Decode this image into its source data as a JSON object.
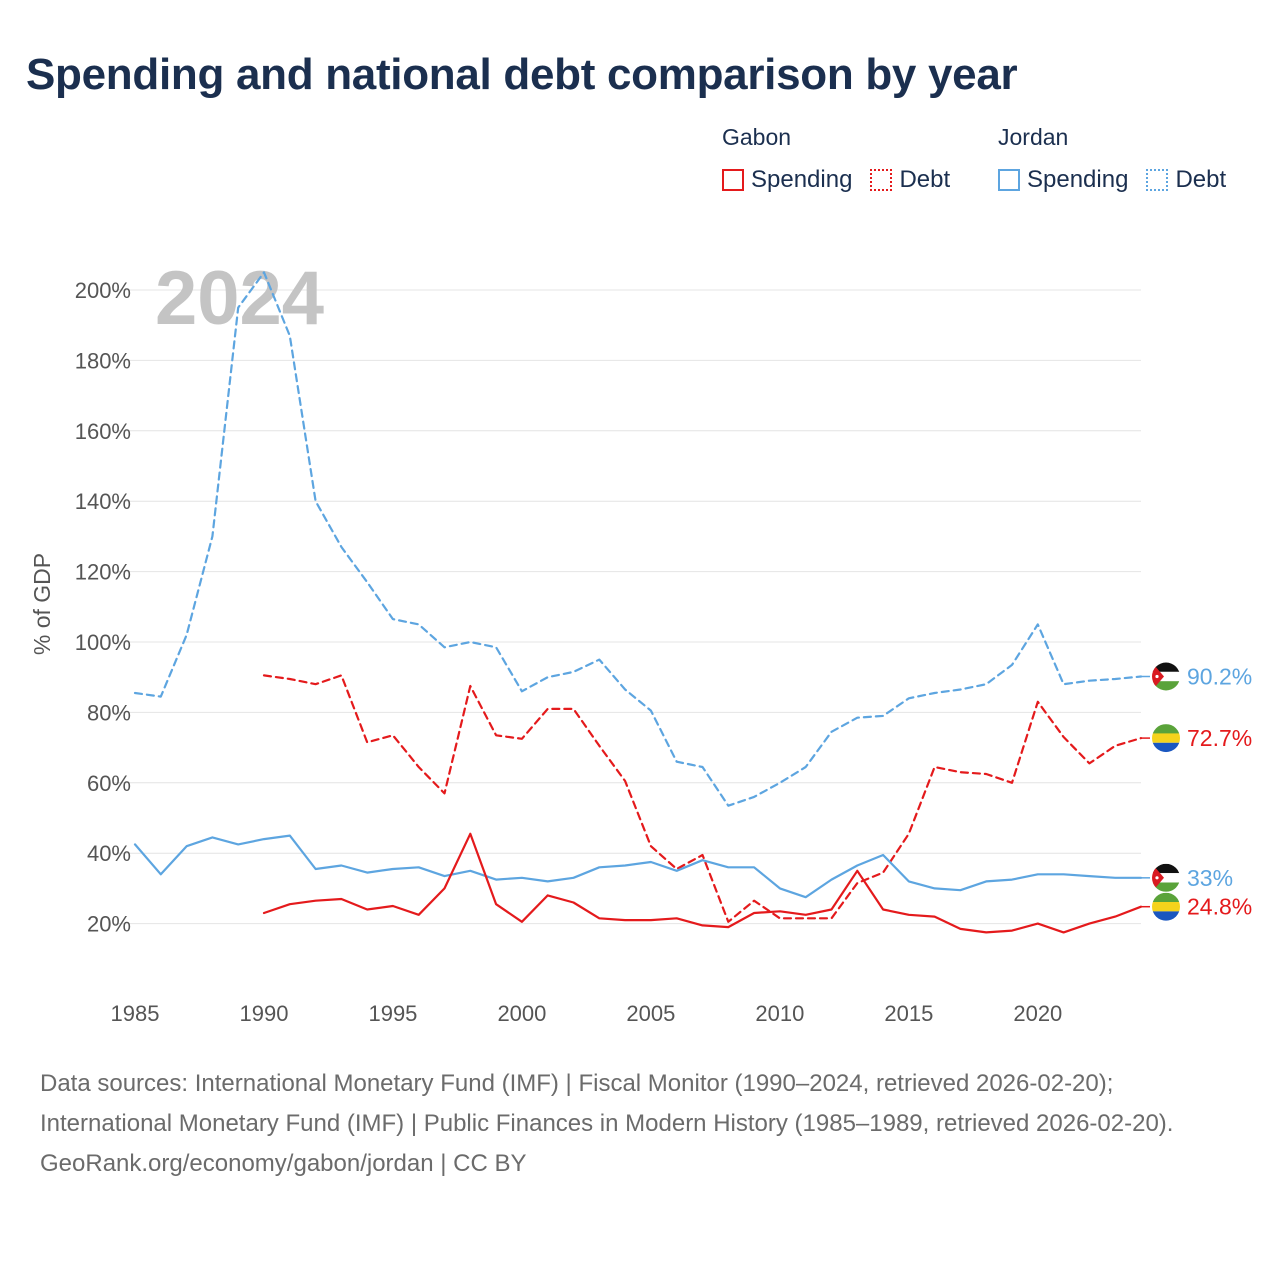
{
  "title": "Spending and national debt comparison by year",
  "legend": {
    "groups": [
      {
        "name": "Gabon",
        "color": "#e41a1c",
        "items": [
          {
            "label": "Spending",
            "style": "solid"
          },
          {
            "label": "Debt",
            "style": "dotted"
          }
        ]
      },
      {
        "name": "Jordan",
        "color": "#5da5e0",
        "items": [
          {
            "label": "Spending",
            "style": "solid"
          },
          {
            "label": "Debt",
            "style": "dotted"
          }
        ]
      }
    ]
  },
  "footer": {
    "sources": "Data sources: International Monetary Fund (IMF) | Fiscal Monitor (1990–2024, retrieved 2026-02-20); International Monetary Fund (IMF) | Public Finances in Modern History (1985–1989, retrieved 2026-02-20).",
    "credit": "GeoRank.org/economy/gabon/jordan | CC BY"
  },
  "chart_data": {
    "type": "line",
    "title": "Spending and national debt comparison by year",
    "ylabel": "% of GDP",
    "xlabel": "",
    "year_label": "2024",
    "xlim": [
      1985,
      2024
    ],
    "ylim": [
      0,
      210
    ],
    "x_ticks": [
      1985,
      1990,
      1995,
      2000,
      2005,
      2010,
      2015,
      2020
    ],
    "y_ticks": [
      20,
      40,
      60,
      80,
      100,
      120,
      140,
      160,
      180,
      200
    ],
    "y_tick_labels": [
      "20%",
      "40%",
      "60%",
      "80%",
      "100%",
      "120%",
      "140%",
      "160%",
      "180%",
      "200%"
    ],
    "grid": true,
    "series": [
      {
        "name": "Jordan Debt",
        "country": "Jordan",
        "metric": "Debt",
        "color": "#5da5e0",
        "dash": "dashed",
        "x": [
          1985,
          1986,
          1987,
          1988,
          1989,
          1990,
          1991,
          1992,
          1993,
          1994,
          1995,
          1996,
          1997,
          1998,
          1999,
          2000,
          2001,
          2002,
          2003,
          2004,
          2005,
          2006,
          2007,
          2008,
          2009,
          2010,
          2011,
          2012,
          2013,
          2014,
          2015,
          2016,
          2017,
          2018,
          2019,
          2020,
          2021,
          2022,
          2023,
          2024
        ],
        "values": [
          85.5,
          84.5,
          102,
          130,
          195,
          205,
          187,
          140,
          127,
          117,
          106.5,
          105,
          98.5,
          100,
          98.5,
          86,
          90,
          91.5,
          95,
          86.5,
          80.5,
          66,
          64.5,
          53.5,
          56,
          60,
          64.5,
          74.5,
          78.5,
          79,
          84,
          85.5,
          86.5,
          88,
          93.5,
          105,
          88,
          89,
          89.5,
          90.2
        ],
        "end_label": "90.2%"
      },
      {
        "name": "Gabon Debt",
        "country": "Gabon",
        "metric": "Debt",
        "color": "#e41a1c",
        "dash": "dashed",
        "x": [
          1990,
          1991,
          1992,
          1993,
          1994,
          1995,
          1996,
          1997,
          1998,
          1999,
          2000,
          2001,
          2002,
          2003,
          2004,
          2005,
          2006,
          2007,
          2008,
          2009,
          2010,
          2011,
          2012,
          2013,
          2014,
          2015,
          2016,
          2017,
          2018,
          2019,
          2020,
          2021,
          2022,
          2023,
          2024
        ],
        "values": [
          90.5,
          89.5,
          88,
          90.5,
          71.5,
          73.5,
          64.5,
          57,
          87.5,
          73.5,
          72.5,
          81,
          81,
          70.5,
          60.5,
          42,
          35.5,
          39.5,
          20.5,
          26.5,
          21.5,
          21.5,
          21.5,
          31.5,
          34.5,
          45.5,
          64.5,
          63,
          62.5,
          60,
          83,
          73,
          65.5,
          70.5,
          72.7
        ],
        "end_label": "72.7%"
      },
      {
        "name": "Jordan Spending",
        "country": "Jordan",
        "metric": "Spending",
        "color": "#5da5e0",
        "dash": "solid",
        "x": [
          1985,
          1986,
          1987,
          1988,
          1989,
          1990,
          1991,
          1992,
          1993,
          1994,
          1995,
          1996,
          1997,
          1998,
          1999,
          2000,
          2001,
          2002,
          2003,
          2004,
          2005,
          2006,
          2007,
          2008,
          2009,
          2010,
          2011,
          2012,
          2013,
          2014,
          2015,
          2016,
          2017,
          2018,
          2019,
          2020,
          2021,
          2022,
          2023,
          2024
        ],
        "values": [
          42.5,
          34,
          42,
          44.5,
          42.5,
          44,
          45,
          35.5,
          36.5,
          34.5,
          35.5,
          36,
          33.5,
          35,
          32.5,
          33,
          32,
          33,
          36,
          36.5,
          37.5,
          35,
          38,
          36,
          36,
          30,
          27.5,
          32.5,
          36.5,
          39.5,
          32,
          30,
          29.5,
          32,
          32.5,
          34,
          34,
          33.5,
          33,
          33
        ],
        "end_label": "33%"
      },
      {
        "name": "Gabon Spending",
        "country": "Gabon",
        "metric": "Spending",
        "color": "#e41a1c",
        "dash": "solid",
        "x": [
          1990,
          1991,
          1992,
          1993,
          1994,
          1995,
          1996,
          1997,
          1998,
          1999,
          2000,
          2001,
          2002,
          2003,
          2004,
          2005,
          2006,
          2007,
          2008,
          2009,
          2010,
          2011,
          2012,
          2013,
          2014,
          2015,
          2016,
          2017,
          2018,
          2019,
          2020,
          2021,
          2022,
          2023,
          2024
        ],
        "values": [
          23,
          25.5,
          26.5,
          27,
          24,
          25,
          22.5,
          30,
          45.5,
          25.5,
          20.5,
          28,
          26,
          21.5,
          21,
          21,
          21.5,
          19.5,
          19,
          23,
          23.5,
          22.5,
          24,
          35,
          24,
          22.5,
          22,
          18.5,
          17.5,
          18,
          20,
          17.5,
          20,
          22,
          24.8
        ],
        "end_label": "24.8%"
      }
    ]
  }
}
